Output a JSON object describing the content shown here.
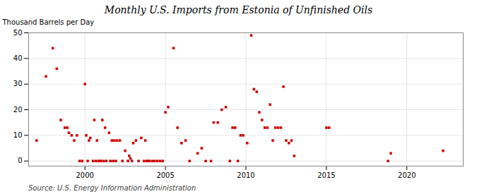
{
  "chart_data": {
    "type": "scatter",
    "title": "Monthly U.S. Imports from Estonia of Unfinished Oils",
    "ylabel": "Thousand Barrels per Day",
    "annotations": [
      "Source: U.S. Energy Information Administration"
    ],
    "color": "#cc0000",
    "marker": "square",
    "grid": true,
    "xlim": [
      1996.5,
      2023.5
    ],
    "xticks": [
      2000,
      2005,
      2010,
      2015,
      2020
    ],
    "ylim": [
      -2,
      50
    ],
    "yticks": [
      0,
      10,
      20,
      30,
      40,
      50
    ],
    "x": [
      1997.0,
      1997.58,
      1998.0,
      1998.25,
      1998.5,
      1998.75,
      1998.9,
      1999.0,
      1999.17,
      1999.33,
      1999.5,
      1999.67,
      1999.83,
      2000.0,
      2000.08,
      2000.17,
      2000.25,
      2000.33,
      2000.5,
      2000.58,
      2000.67,
      2000.75,
      2000.83,
      2000.92,
      2001.0,
      2001.08,
      2001.17,
      2001.25,
      2001.33,
      2001.5,
      2001.58,
      2001.67,
      2001.75,
      2001.83,
      2001.92,
      2002.0,
      2002.17,
      2002.33,
      2002.5,
      2002.67,
      2002.75,
      2002.83,
      2002.92,
      2003.0,
      2003.17,
      2003.33,
      2003.5,
      2003.67,
      2003.75,
      2003.83,
      2003.92,
      2004.0,
      2004.17,
      2004.33,
      2004.5,
      2004.67,
      2004.83,
      2005.0,
      2005.17,
      2005.5,
      2005.75,
      2006.0,
      2006.25,
      2006.5,
      2007.0,
      2007.25,
      2007.5,
      2007.83,
      2008.0,
      2008.25,
      2008.5,
      2008.75,
      2009.0,
      2009.17,
      2009.33,
      2009.5,
      2009.67,
      2009.83,
      2010.08,
      2010.33,
      2010.5,
      2010.67,
      2010.83,
      2011.0,
      2011.17,
      2011.33,
      2011.5,
      2011.67,
      2011.83,
      2012.0,
      2012.17,
      2012.33,
      2012.5,
      2012.67,
      2012.83,
      2013.0,
      2015.0,
      2015.17,
      2018.83,
      2019.0,
      2022.25
    ],
    "values": [
      8,
      33,
      44,
      36,
      16,
      13,
      13,
      11,
      10,
      8,
      10,
      0,
      0,
      30,
      10,
      0,
      8,
      9,
      0,
      16,
      0,
      8,
      0,
      0,
      0,
      16,
      0,
      13,
      0,
      11,
      0,
      8,
      0,
      8,
      0,
      8,
      8,
      0,
      4,
      0,
      2,
      1,
      0,
      7,
      8,
      0,
      9,
      0,
      8,
      0,
      0,
      0,
      0,
      0,
      0,
      0,
      0,
      19,
      21,
      44,
      13,
      7,
      8,
      0,
      3,
      5,
      0,
      0,
      15,
      15,
      20,
      21,
      0,
      13,
      13,
      0,
      10,
      10,
      7,
      49,
      28,
      27,
      19,
      16,
      13,
      13,
      22,
      8,
      13,
      13,
      13,
      29,
      8,
      7,
      8,
      2,
      13,
      13,
      0,
      3,
      4
    ]
  }
}
